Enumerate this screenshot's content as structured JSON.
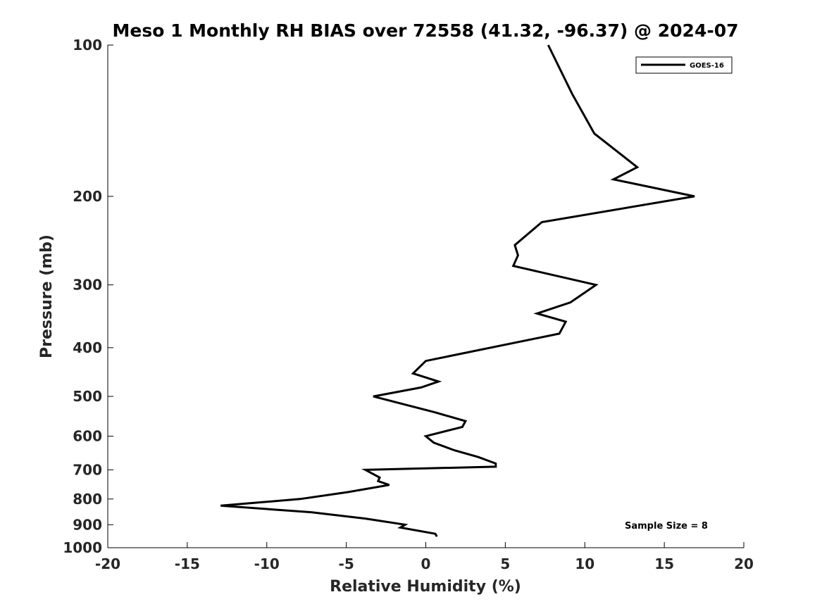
{
  "chart_data": {
    "type": "line",
    "title": "Meso 1 Monthly RH BIAS over 72558 (41.32, -96.37) @ 2024-07",
    "xlabel": "Relative Humidity (%)",
    "ylabel": "Pressure (mb)",
    "xlim": [
      -20,
      20
    ],
    "ylim": [
      1000,
      100
    ],
    "y_scale": "log",
    "grid": false,
    "x_ticks": [
      -20,
      -15,
      -10,
      -5,
      0,
      5,
      10,
      15,
      20
    ],
    "y_ticks": [
      100,
      200,
      300,
      400,
      500,
      600,
      700,
      800,
      900,
      1000
    ],
    "legend_position": "top-right",
    "series": [
      {
        "name": "GOES-16",
        "color": "#000000",
        "points": [
          [
            7.7,
            100
          ],
          [
            9.2,
            125
          ],
          [
            10.6,
            150
          ],
          [
            13.3,
            175
          ],
          [
            11.8,
            185
          ],
          [
            16.9,
            200
          ],
          [
            7.3,
            225
          ],
          [
            5.6,
            250
          ],
          [
            5.8,
            262
          ],
          [
            5.5,
            275
          ],
          [
            10.7,
            300
          ],
          [
            9.1,
            325
          ],
          [
            7.0,
            342
          ],
          [
            8.8,
            355
          ],
          [
            8.4,
            375
          ],
          [
            0.0,
            425
          ],
          [
            -0.8,
            450
          ],
          [
            0.8,
            467
          ],
          [
            -0.3,
            480
          ],
          [
            -3.3,
            500
          ],
          [
            0.6,
            538
          ],
          [
            2.5,
            560
          ],
          [
            2.3,
            575
          ],
          [
            0.0,
            600
          ],
          [
            0.5,
            618
          ],
          [
            1.8,
            640
          ],
          [
            3.3,
            660
          ],
          [
            4.4,
            680
          ],
          [
            4.4,
            690
          ],
          [
            -3.8,
            700
          ],
          [
            -2.9,
            725
          ],
          [
            -3.0,
            737
          ],
          [
            -2.3,
            750
          ],
          [
            -4.9,
            775
          ],
          [
            -7.9,
            800
          ],
          [
            -12.9,
            825
          ],
          [
            -7.2,
            850
          ],
          [
            -3.8,
            875
          ],
          [
            -1.3,
            900
          ],
          [
            -1.6,
            912
          ],
          [
            0.6,
            938
          ],
          [
            0.7,
            950
          ]
        ]
      }
    ],
    "annotations": [
      {
        "text": "Sample Size = 8",
        "position": "bottom-right"
      }
    ]
  }
}
